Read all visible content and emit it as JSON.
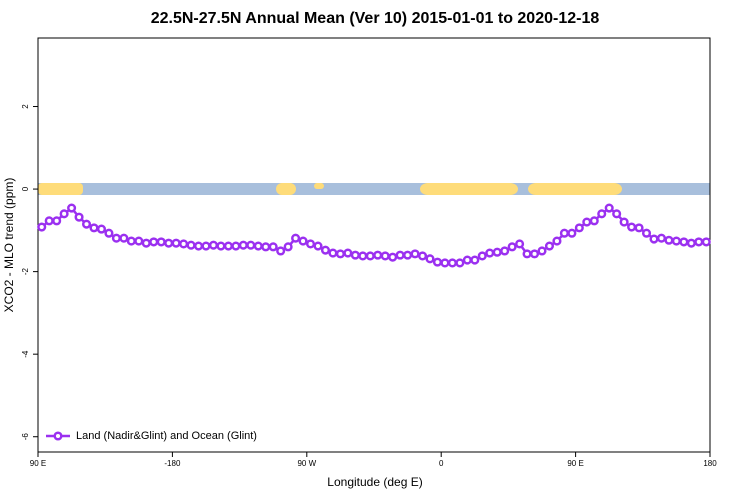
{
  "chart_data": {
    "type": "line",
    "title": "22.5N-27.5N Annual Mean (Ver 10)   2015-01-01 to 2020-12-18",
    "xlabel": "Longitude (deg E)",
    "ylabel": "XCO2 - MLO trend (ppm)",
    "x": [
      -267.5,
      -262.5,
      -257.5,
      -252.5,
      -247.5,
      -242.5,
      -237.5,
      -232.5,
      -227.5,
      -222.5,
      -217.5,
      -212.5,
      -207.5,
      -202.5,
      -197.5,
      -192.5,
      -187.5,
      -182.5,
      -177.5,
      -172.5,
      -167.5,
      -162.5,
      -157.5,
      -152.5,
      -147.5,
      -142.5,
      -137.5,
      -132.5,
      -127.5,
      -122.5,
      -117.5,
      -112.5,
      -107.5,
      -102.5,
      -97.5,
      -92.5,
      -87.5,
      -82.5,
      -77.5,
      -72.5,
      -67.5,
      -62.5,
      -57.5,
      -52.5,
      -47.5,
      -42.5,
      -37.5,
      -32.5,
      -27.5,
      -22.5,
      -17.5,
      -12.5,
      -7.5,
      -2.5,
      2.5,
      7.5,
      12.5,
      17.5,
      22.5,
      27.5,
      32.5,
      37.5,
      42.5,
      47.5,
      52.5,
      57.5,
      62.5,
      67.5,
      72.5,
      77.5,
      82.5,
      87.5,
      92.5,
      97.5,
      102.5,
      107.5,
      112.5,
      117.5,
      122.5,
      127.5,
      132.5,
      137.5,
      142.5,
      147.5,
      152.5,
      157.5,
      162.5,
      167.5,
      172.5,
      177.5
    ],
    "series": [
      {
        "name": "Land (Nadir&Glint) and Ocean (Glint)",
        "color": "#9b30f0",
        "values": [
          -0.92,
          -0.77,
          -0.77,
          -0.6,
          -0.46,
          -0.68,
          -0.85,
          -0.94,
          -0.97,
          -1.07,
          -1.19,
          -1.19,
          -1.26,
          -1.26,
          -1.31,
          -1.28,
          -1.28,
          -1.31,
          -1.31,
          -1.33,
          -1.36,
          -1.38,
          -1.38,
          -1.36,
          -1.38,
          -1.38,
          -1.38,
          -1.36,
          -1.36,
          -1.38,
          -1.4,
          -1.4,
          -1.5,
          -1.4,
          -1.19,
          -1.26,
          -1.33,
          -1.38,
          -1.48,
          -1.55,
          -1.57,
          -1.55,
          -1.6,
          -1.62,
          -1.62,
          -1.6,
          -1.62,
          -1.65,
          -1.6,
          -1.6,
          -1.57,
          -1.62,
          -1.69,
          -1.77,
          -1.79,
          -1.79,
          -1.79,
          -1.72,
          -1.72,
          -1.62,
          -1.55,
          -1.53,
          -1.5,
          -1.4,
          -1.33,
          -1.57,
          -1.57,
          -1.5,
          -1.38,
          -1.26,
          -1.07,
          -1.07,
          -0.94,
          -0.8,
          -0.77,
          -0.6,
          -0.46,
          -0.6,
          -0.8,
          -0.92,
          -0.94,
          -1.07,
          -1.21,
          -1.19,
          -1.24,
          -1.26,
          -1.28,
          -1.31,
          -1.28,
          -1.28
        ]
      }
    ],
    "xlim": [
      -270,
      180
    ],
    "xticks": [
      {
        "value": -270,
        "label": "90 E"
      },
      -180,
      {
        "value": -90,
        "label": "90 W"
      },
      0,
      {
        "value": 90,
        "label": "90 E"
      },
      180
    ],
    "ylim": [
      -6.37,
      3.66
    ],
    "yticks": [
      -6,
      -4,
      -2,
      0,
      2
    ],
    "legend": "bottom-left"
  }
}
